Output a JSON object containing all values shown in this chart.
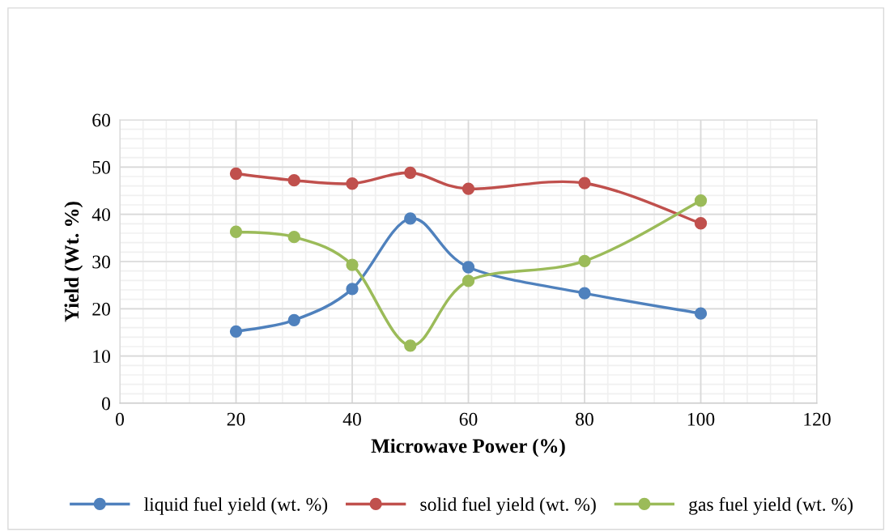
{
  "chart_data": {
    "type": "line",
    "xlabel": "Microwave Power (%)",
    "ylabel": "Yield (Wt. %)",
    "x": [
      20,
      30,
      40,
      50,
      60,
      80,
      100
    ],
    "series": [
      {
        "name": "liquid fuel yield (wt. %)",
        "color": "#4f81bd",
        "values": [
          15.2,
          17.6,
          24.2,
          39.1,
          28.8,
          23.3,
          19.0
        ]
      },
      {
        "name": "solid fuel yield (wt. %)",
        "color": "#c0504d",
        "values": [
          48.6,
          47.2,
          46.5,
          48.8,
          45.4,
          46.6,
          38.1
        ]
      },
      {
        "name": "gas fuel yield (wt. %)",
        "color": "#9bbb59",
        "values": [
          36.3,
          35.2,
          29.3,
          12.2,
          25.9,
          30.1,
          42.9
        ]
      }
    ],
    "xlim": [
      0,
      120
    ],
    "xticks": [
      0,
      20,
      40,
      60,
      80,
      100,
      120
    ],
    "ylim": [
      0,
      60
    ],
    "yticks": [
      0,
      10,
      20,
      30,
      40,
      50,
      60
    ],
    "grid": true,
    "legend": "bottom",
    "marker": "circle",
    "line_style": "solid"
  }
}
